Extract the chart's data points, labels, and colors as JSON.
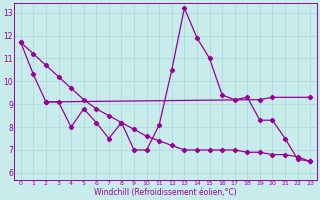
{
  "bg_color": "#c8ecec",
  "grid_color": "#b0dcdc",
  "line_color": "#990099",
  "xlim_min": -0.5,
  "xlim_max": 23.5,
  "ylim_min": 5.7,
  "ylim_max": 13.4,
  "xticks": [
    0,
    1,
    2,
    3,
    4,
    5,
    6,
    7,
    8,
    9,
    10,
    11,
    12,
    13,
    14,
    15,
    16,
    17,
    18,
    19,
    20,
    21,
    22,
    23
  ],
  "yticks": [
    6,
    7,
    8,
    9,
    10,
    11,
    12,
    13
  ],
  "xlabel": "Windchill (Refroidissement éolien,°C)",
  "line1_x": [
    0,
    1,
    2,
    3,
    4,
    5,
    6,
    7,
    8,
    9,
    10,
    11,
    12,
    13,
    14,
    15,
    16,
    17,
    18,
    19,
    20,
    21,
    22,
    23
  ],
  "line1_y": [
    11.7,
    10.3,
    9.1,
    9.1,
    8.0,
    8.8,
    8.2,
    7.5,
    8.2,
    7.0,
    7.0,
    8.1,
    10.5,
    13.2,
    11.9,
    11.0,
    9.4,
    9.2,
    9.3,
    8.3,
    8.3,
    7.5,
    6.6,
    6.5
  ],
  "line2_x": [
    2,
    19,
    20,
    23
  ],
  "line2_y": [
    9.1,
    9.2,
    9.3,
    9.3
  ],
  "line3_x": [
    0,
    1,
    2,
    3,
    4,
    5,
    6,
    7,
    8,
    9,
    10,
    11,
    12,
    13,
    14,
    15,
    16,
    17,
    18,
    19,
    20,
    21,
    22,
    23
  ],
  "line3_y": [
    11.7,
    11.2,
    10.7,
    10.2,
    9.7,
    9.2,
    8.8,
    8.5,
    8.2,
    7.9,
    7.6,
    7.4,
    7.2,
    7.0,
    7.0,
    7.0,
    7.0,
    7.0,
    6.9,
    6.9,
    6.8,
    6.8,
    6.7,
    6.5
  ]
}
